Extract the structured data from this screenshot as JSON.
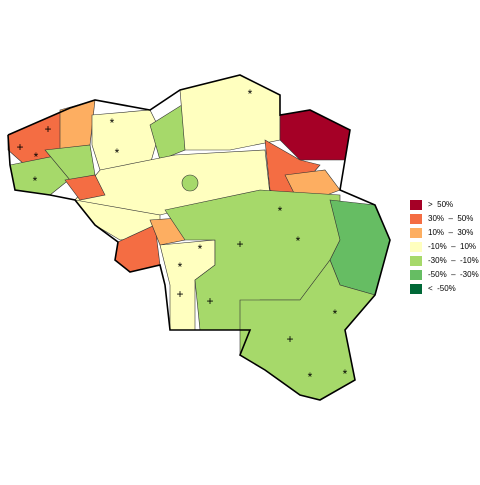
{
  "legend": [
    {
      "label": ">  50%",
      "color": "#a50026"
    },
    {
      "label": "30%  –  50%",
      "color": "#f46d43"
    },
    {
      "label": "10%  –  30%",
      "color": "#fdae61"
    },
    {
      "label": "-10%  –  10%",
      "color": "#ffffbf"
    },
    {
      "label": "-30%  –  -10%",
      "color": "#a6d96a"
    },
    {
      "label": "-50%  –  -30%",
      "color": "#66bd63"
    },
    {
      "label": "<  -50%",
      "color": "#006837"
    }
  ],
  "markers": [
    "+",
    "+",
    "*",
    "*",
    "*",
    "*",
    "*",
    "+",
    "*",
    "*",
    "*",
    "+",
    "+",
    "*",
    "+",
    "*",
    "*",
    "*"
  ]
}
